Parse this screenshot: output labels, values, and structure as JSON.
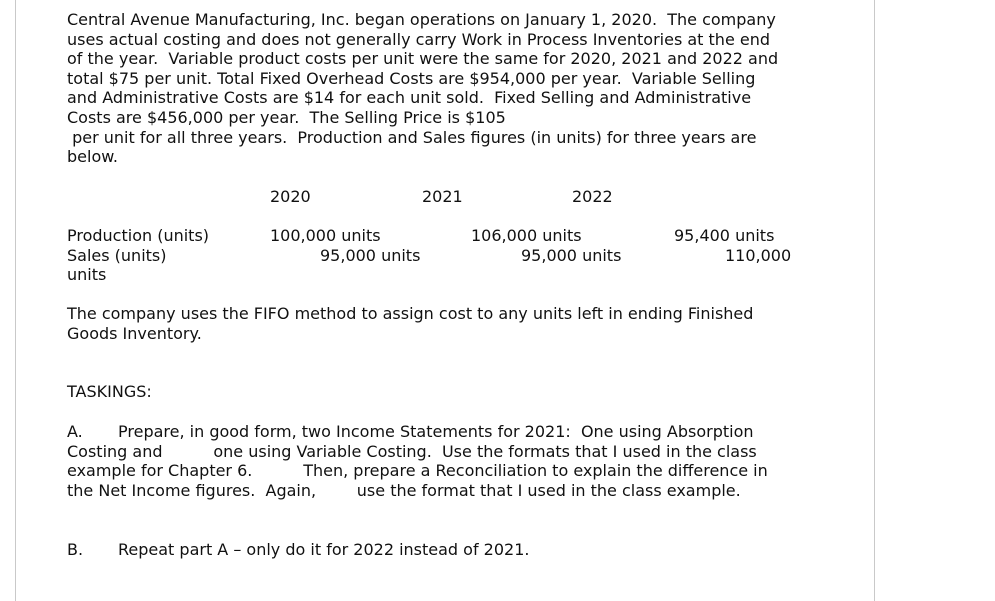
{
  "intro": {
    "lines": [
      "Central Avenue Manufacturing, Inc. began operations on January 1, 2020.  The company",
      "uses actual costing and does not generally carry Work in Process Inventories at the end",
      "of the year.  Variable product costs per unit were the same for 2020, 2021 and 2022 and",
      "total $75 per unit. Total Fixed Overhead Costs are $954,000 per year.  Variable Selling",
      "and Administrative Costs are $14 for each unit sold.  Fixed Selling and Administrative",
      "Costs are $456,000 per year.  The Selling Price is $105",
      " per unit for all three years.  Production and Sales figures (in units) for three years are",
      "below."
    ]
  },
  "table": {
    "years": [
      "2020",
      "2021",
      "2022"
    ],
    "rows": {
      "production_label": "Production (units)",
      "sales_label": "Sales (units)",
      "units_label": "units",
      "production_2020": "100,000 units",
      "sales_2020": "95,000 units",
      "production_2021": "106,000 units",
      "sales_2021": "95,000 units",
      "production_2022": "95,400 units",
      "sales_2022": "110,000"
    }
  },
  "fifo": {
    "lines": [
      "The company uses the FIFO method to assign cost to any units left in ending Finished",
      "Goods Inventory."
    ]
  },
  "taskings": {
    "heading": "TASKINGS:",
    "a_marker": "A.",
    "a_lines": [
      "Prepare, in good form, two Income Statements for 2021:  One using Absorption",
      "Costing and          one using Variable Costing.  Use the formats that I used in the class",
      "example for Chapter 6.          Then, prepare a Reconciliation to explain the difference in",
      "the Net Income figures.  Again,        use the format that I used in the class example."
    ],
    "b_marker": "B.",
    "b_text": "Repeat part A – only do it for 2022 instead of 2021."
  }
}
